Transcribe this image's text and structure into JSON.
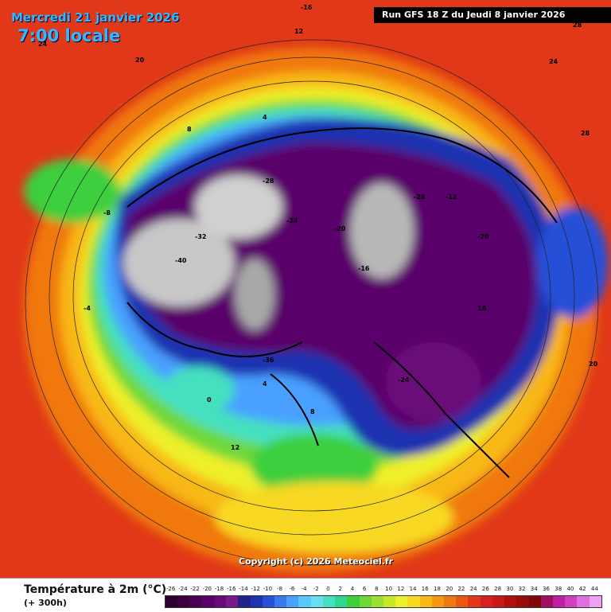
{
  "header": {
    "date": "Mercredi 21 janvier 2026",
    "time": "7:00 locale",
    "run": "Run GFS 18 Z du Jeudi 8 janvier 2026"
  },
  "footer": {
    "copyright": "Copyright (c) 2026 Meteociel.fr"
  },
  "legend": {
    "title": "Température à 2m (°C)",
    "subtitle": "(+ 300h)",
    "values": [
      "-26",
      "-24",
      "-22",
      "-20",
      "-18",
      "-16",
      "-14",
      "-12",
      "-10",
      "-8",
      "-6",
      "-4",
      "-2",
      "0",
      "2",
      "4",
      "6",
      "8",
      "10",
      "12",
      "14",
      "16",
      "18",
      "20",
      "22",
      "24",
      "26",
      "28",
      "30",
      "32",
      "34",
      "36",
      "38",
      "40",
      "42",
      "44"
    ],
    "colors": [
      "#2d0030",
      "#3a0040",
      "#4a0055",
      "#5a006a",
      "#6a0a7a",
      "#7a1a8a",
      "#22228a",
      "#1f33b0",
      "#2850d8",
      "#3a78f0",
      "#4aa0ff",
      "#5ac8ff",
      "#66e0f0",
      "#44e0c0",
      "#2ed890",
      "#3ecf3e",
      "#6ed83a",
      "#9be033",
      "#c8e82c",
      "#eef02a",
      "#f8d820",
      "#f8b818",
      "#f89810",
      "#f07810",
      "#e85810",
      "#e03818",
      "#d82020",
      "#c81818",
      "#b01010",
      "#980c0c",
      "#800808",
      "#a01060",
      "#c020a0",
      "#d040c0",
      "#e070e0",
      "#f0a0f0"
    ]
  },
  "map": {
    "labels": [
      {
        "t": "-16"
      },
      {
        "t": "12"
      },
      {
        "t": "20"
      },
      {
        "t": "24"
      },
      {
        "t": "28"
      },
      {
        "t": "8"
      },
      {
        "t": "4"
      },
      {
        "t": "-28"
      },
      {
        "t": "-24"
      },
      {
        "t": "-32"
      },
      {
        "t": "-40"
      },
      {
        "t": "-20"
      },
      {
        "t": "-12"
      },
      {
        "t": "-8"
      },
      {
        "t": "-4"
      },
      {
        "t": "0"
      },
      {
        "t": "16"
      },
      {
        "t": "-36"
      },
      {
        "t": "-16"
      },
      {
        "t": "4"
      },
      {
        "t": "12"
      },
      {
        "t": "24"
      },
      {
        "t": "28"
      },
      {
        "t": "20"
      },
      {
        "t": "-24"
      },
      {
        "t": "-28"
      },
      {
        "t": "-20"
      },
      {
        "t": "8"
      }
    ]
  }
}
